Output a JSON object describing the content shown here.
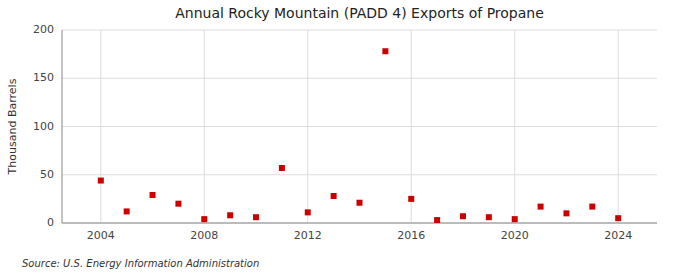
{
  "chart_data": {
    "type": "scatter",
    "title": "Annual Rocky Mountain (PADD 4) Exports of Propane",
    "ylabel": "Thousand Barrels",
    "annotation": "Source: U.S. Energy Information Administration",
    "x": [
      2004,
      2005,
      2006,
      2007,
      2008,
      2009,
      2010,
      2011,
      2012,
      2013,
      2014,
      2015,
      2016,
      2017,
      2018,
      2019,
      2020,
      2021,
      2022,
      2023,
      2024
    ],
    "values": [
      44,
      12,
      29,
      20,
      4,
      8,
      6,
      57,
      11,
      28,
      21,
      178,
      25,
      3,
      7,
      6,
      4,
      17,
      10,
      17,
      5
    ],
    "color": "#cc0000",
    "marker": "square",
    "xlim": [
      2002.5,
      2025.5
    ],
    "xticks": [
      2004,
      2008,
      2012,
      2016,
      2020,
      2024
    ],
    "ylim": [
      0,
      200
    ],
    "yticks": [
      0,
      50,
      100,
      150,
      200
    ],
    "grid": true
  }
}
